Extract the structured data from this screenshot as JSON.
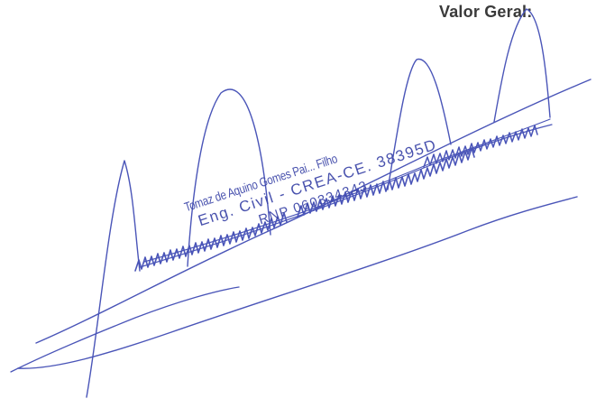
{
  "header": {
    "valor_label": "Valor Geral:"
  },
  "stamp": {
    "name": "Tomaz de Aquino Gomes Pai... Filho",
    "title": "Eng. Civil - CREA-CE. 38395D",
    "rnp": "RNP 060334343"
  },
  "colors": {
    "ink": "#4a55b8",
    "label": "#3a3a3a",
    "background": "#ffffff"
  }
}
